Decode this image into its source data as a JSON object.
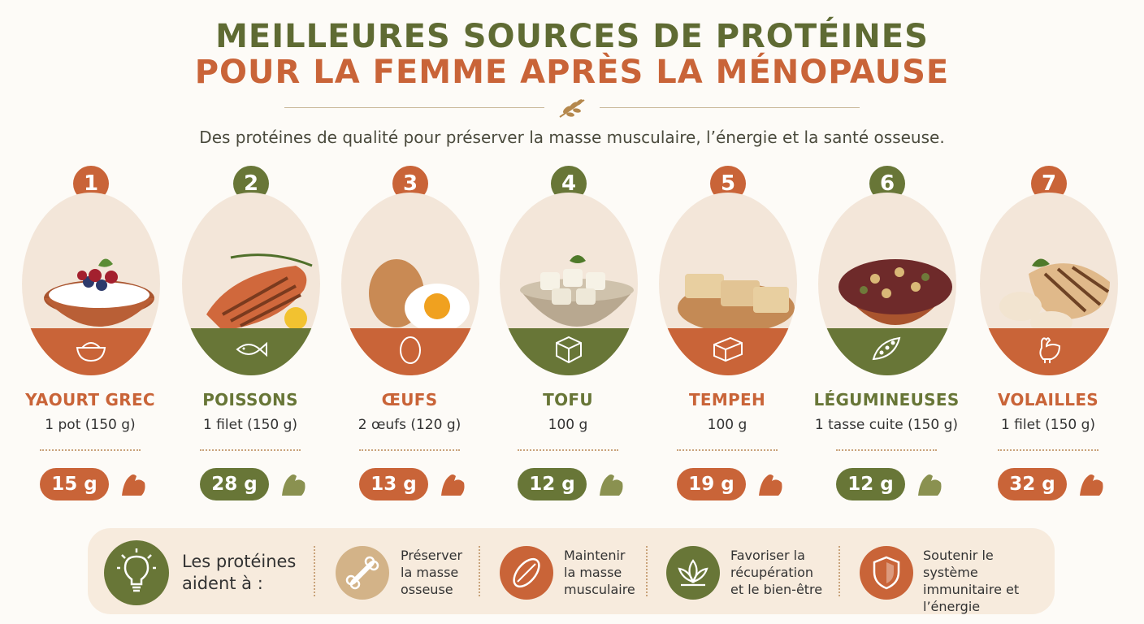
{
  "header": {
    "title_line1": "MEILLEURES SOURCES DE PROTÉINES",
    "title_line2": "POUR LA FEMME APRÈS LA MÉNOPAUSE",
    "subtitle": "Des protéines de qualité pour préserver la masse musculaire, l’énergie et la santé osseuse."
  },
  "colors": {
    "green": "#687637",
    "terracotta": "#c96438",
    "text_green": "#5f6b33",
    "background": "#fdfbf7",
    "panel": "#f7ebdd"
  },
  "foods": [
    {
      "number": "1",
      "name": "YAOURT GREC",
      "portion": "1 pot (150 g)",
      "protein": "15 g",
      "accent": "terracotta",
      "icon": "bowl-icon"
    },
    {
      "number": "2",
      "name": "POISSONS",
      "portion": "1 filet (150 g)",
      "protein": "28 g",
      "accent": "green",
      "icon": "fish-icon"
    },
    {
      "number": "3",
      "name": "ŒUFS",
      "portion": "2 œufs (120 g)",
      "protein": "13 g",
      "accent": "terracotta",
      "icon": "egg-icon"
    },
    {
      "number": "4",
      "name": "TOFU",
      "portion": "100 g",
      "protein": "12 g",
      "accent": "green",
      "icon": "tofu-cube-icon"
    },
    {
      "number": "5",
      "name": "TEMPEH",
      "portion": "100 g",
      "protein": "19 g",
      "accent": "terracotta",
      "icon": "tempeh-block-icon"
    },
    {
      "number": "6",
      "name": "LÉGUMINEUSES",
      "portion": "1 tasse cuite (150 g)",
      "protein": "12 g",
      "accent": "green",
      "icon": "pea-pod-icon"
    },
    {
      "number": "7",
      "name": "VOLAILLES",
      "portion": "1 filet (150 g)",
      "protein": "32 g",
      "accent": "terracotta",
      "icon": "chicken-icon"
    }
  ],
  "benefits": {
    "lead": "Les protéines aident à :",
    "items": [
      {
        "text": "Préserver la masse osseuse",
        "icon": "bone-icon"
      },
      {
        "text": "Maintenir la masse musculaire",
        "icon": "muscle-icon"
      },
      {
        "text": "Favoriser la récupération et le bien-être",
        "icon": "lotus-icon"
      },
      {
        "text": "Soutenir le système immunitaire et l’énergie",
        "icon": "shield-icon"
      }
    ]
  }
}
